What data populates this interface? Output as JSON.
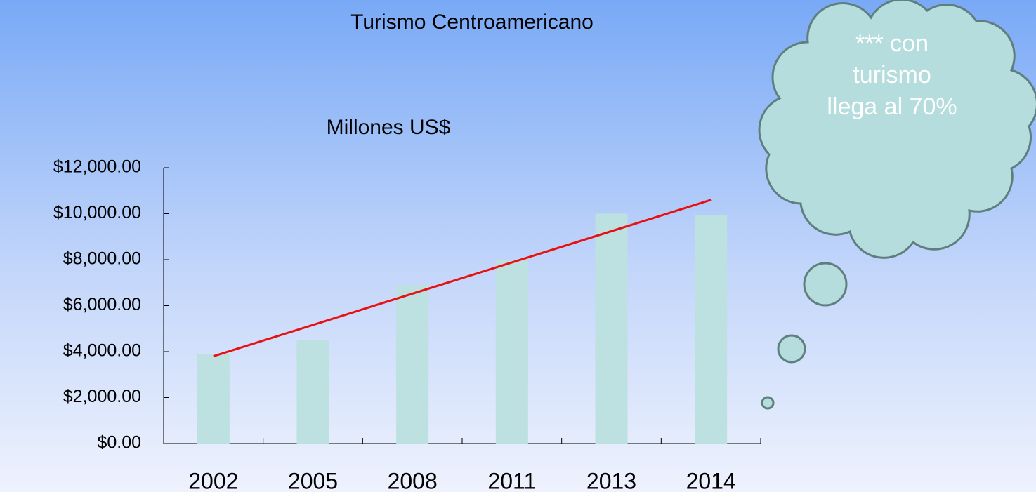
{
  "chart_data": {
    "type": "bar",
    "title": "Turismo Centroamericano",
    "subtitle": "Millones US$",
    "categories": [
      "2002",
      "2005",
      "2008",
      "2011",
      "2013",
      "2014"
    ],
    "values": [
      3900,
      4500,
      6900,
      8000,
      10000,
      9950
    ],
    "color": "#bde0e0",
    "trendline": {
      "color": "#e81010",
      "values": [
        3800,
        10600
      ]
    },
    "ylim": [
      0,
      12000
    ],
    "yticks": [
      {
        "value": 0,
        "label": "$0.00"
      },
      {
        "value": 2000,
        "label": "$2,000.00"
      },
      {
        "value": 4000,
        "label": "$4,000.00"
      },
      {
        "value": 6000,
        "label": "$6,000.00"
      },
      {
        "value": 8000,
        "label": "$8,000.00"
      },
      {
        "value": 10000,
        "label": "$10,000.00"
      },
      {
        "value": 12000,
        "label": "$12,000.00"
      }
    ],
    "annotation": "*** con turismo llega al 70%"
  }
}
